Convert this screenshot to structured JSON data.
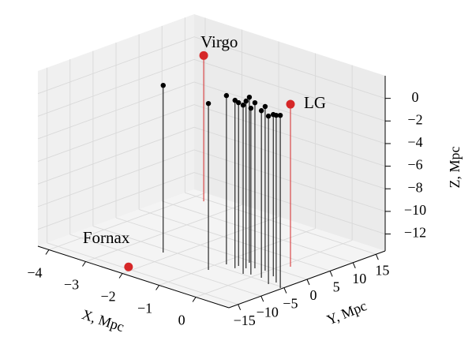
{
  "chart_data": {
    "type": "scatter3d",
    "xlabel": "X, Mpc",
    "ylabel": "Y, Mpc",
    "zlabel": "Z, Mpc",
    "xlim": [
      -4.3,
      0.9
    ],
    "ylim": [
      -17,
      17
    ],
    "zlim": [
      -13.5,
      2
    ],
    "xticks": [
      {
        "value": -4,
        "label": "−4"
      },
      {
        "value": -3,
        "label": "−3"
      },
      {
        "value": -2,
        "label": "−2"
      },
      {
        "value": -1,
        "label": "−1"
      },
      0
    ],
    "yticks": [
      {
        "value": -15,
        "label": "−15"
      },
      {
        "value": -10,
        "label": "−10"
      },
      {
        "value": -5,
        "label": "−5"
      },
      0,
      5,
      10,
      15
    ],
    "zticks": [
      {
        "value": -12,
        "label": "−12"
      },
      {
        "value": -10,
        "label": "−10"
      },
      {
        "value": -8,
        "label": "−8"
      },
      {
        "value": -6,
        "label": "−6"
      },
      {
        "value": -4,
        "label": "−4"
      },
      {
        "value": -2,
        "label": "−2"
      },
      0
    ],
    "grid": true,
    "stems": true,
    "series": [
      {
        "color": "#000000",
        "x": [
          -2.24,
          -0.9,
          -0.86,
          -0.58,
          -0.62,
          -0.24,
          -0.42,
          -0.59,
          -0.1,
          -0.29,
          0.18,
          -0.05,
          0.53,
          0.29,
          0.58,
          0.86
        ],
        "y": [
          -6.2,
          -7.07,
          -3.47,
          -3.84,
          -2.76,
          -4.79,
          -2.72,
          -0.64,
          -4.22,
          -1.83,
          -4.18,
          -1.52,
          -5.44,
          -2.47,
          -4.15,
          -5.5
        ],
        "z": [
          1.29,
          1.22,
          1.43,
          1.36,
          0.95,
          1.43,
          1.29,
          1.15,
          1.22,
          1.15,
          1.29,
          1.02,
          1.36,
          0.81,
          1.29,
          1.78
        ]
      },
      {
        "color": "#d62728",
        "labels": [
          "Virgo",
          "LG",
          "Fornax"
        ],
        "x": [
          -3.69,
          0.16,
          -2.17
        ],
        "y": [
          14.2,
          2.31,
          -14.3
        ],
        "z": [
          -0.6,
          0.88,
          -13.5
        ]
      }
    ]
  }
}
